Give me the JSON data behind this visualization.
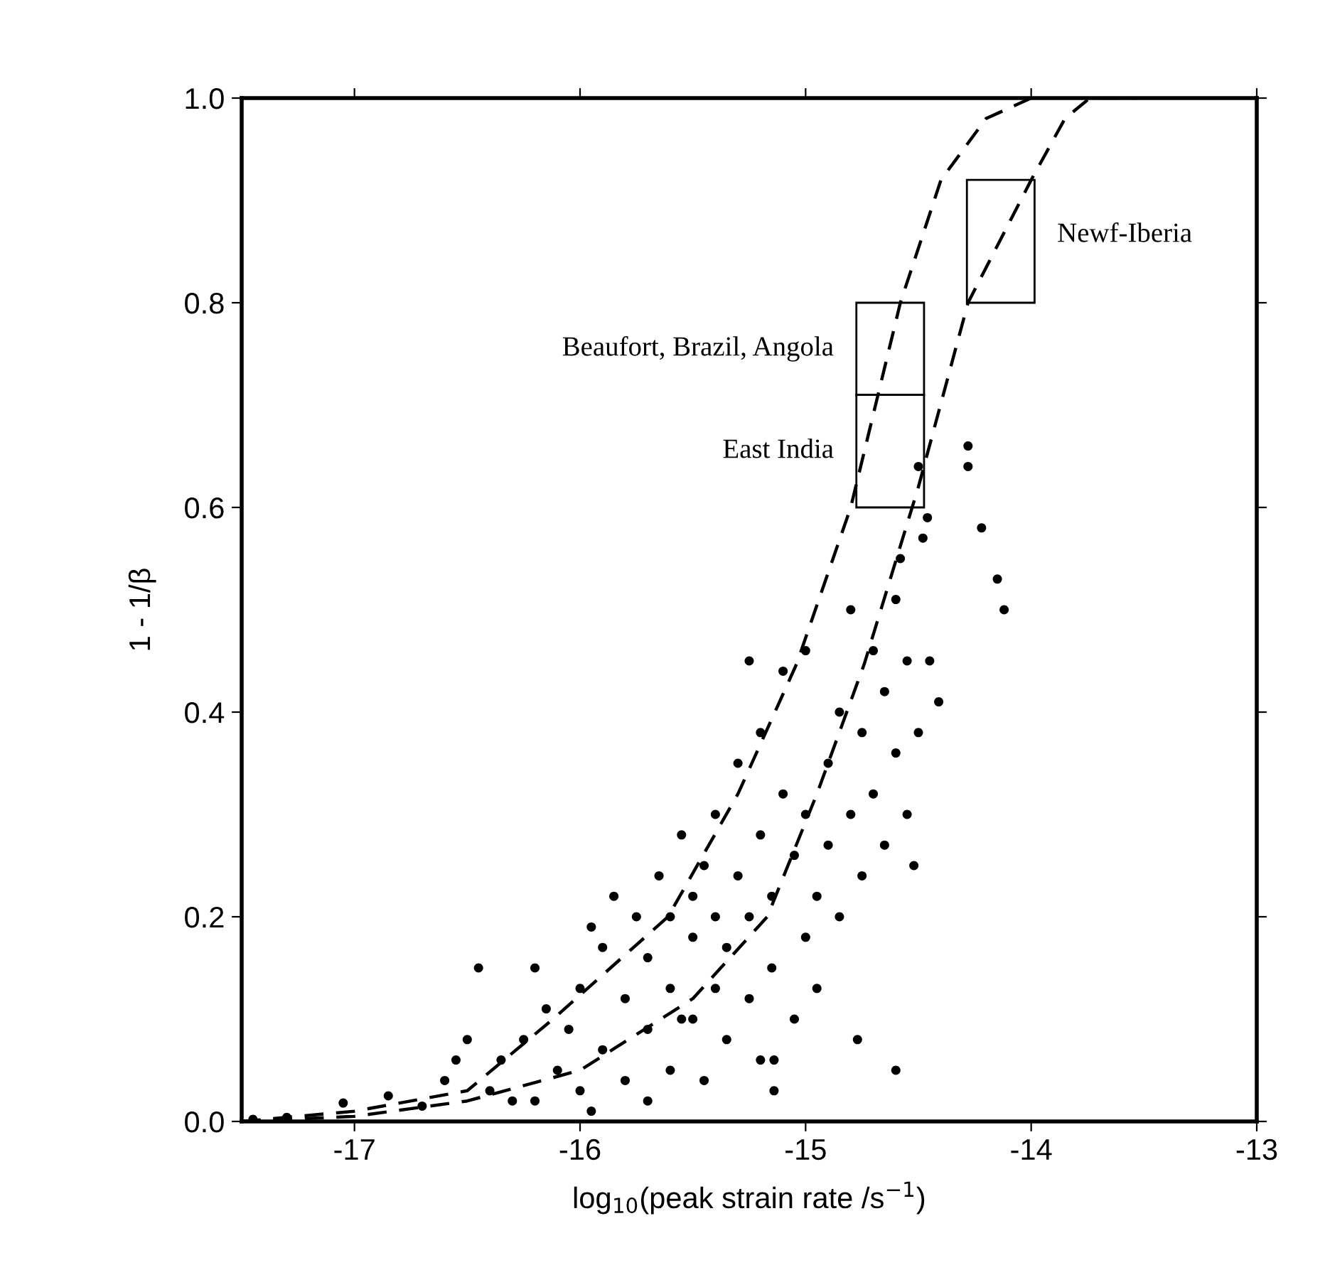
{
  "chart_data": {
    "type": "scatter",
    "xlabel": "log$_{10}$(peak strain rate /s$^{−1}$)",
    "ylabel": "1 - 1/β",
    "xlim": [
      -17.5,
      -13
    ],
    "ylim": [
      0,
      1
    ],
    "xticks": [
      -17,
      -16,
      -15,
      -14,
      -13
    ],
    "yticks": [
      {
        "value": 0,
        "label": "0.0"
      },
      0.2,
      0.4,
      0.6,
      0.8,
      {
        "value": 1,
        "label": "1.0"
      }
    ],
    "series": [
      {
        "color": "#000000",
        "marker": "circle",
        "x": [
          -17.45,
          -17.3,
          -17.05,
          -16.85,
          -16.7,
          -16.6,
          -16.55,
          -16.5,
          -16.45,
          -16.4,
          -16.35,
          -16.3,
          -16.25,
          -16.2,
          -16.2,
          -16.15,
          -16.1,
          -16.05,
          -16.0,
          -16.0,
          -15.95,
          -15.95,
          -15.9,
          -15.9,
          -15.85,
          -15.8,
          -15.8,
          -15.75,
          -15.7,
          -15.7,
          -15.7,
          -15.65,
          -15.6,
          -15.6,
          -15.6,
          -15.55,
          -15.55,
          -15.5,
          -15.5,
          -15.5,
          -15.45,
          -15.45,
          -15.4,
          -15.4,
          -15.4,
          -15.35,
          -15.35,
          -15.3,
          -15.3,
          -15.25,
          -15.25,
          -15.25,
          -15.2,
          -15.2,
          -15.2,
          -15.15,
          -15.15,
          -15.14,
          -15.14,
          -15.1,
          -15.1,
          -15.05,
          -15.05,
          -15.0,
          -15.0,
          -15.0,
          -14.95,
          -14.95,
          -14.9,
          -14.9,
          -14.85,
          -14.85,
          -14.8,
          -14.8,
          -14.77,
          -14.75,
          -14.75,
          -14.7,
          -14.7,
          -14.65,
          -14.65,
          -14.6,
          -14.6,
          -14.6,
          -14.58,
          -14.55,
          -14.55,
          -14.52,
          -14.5,
          -14.5,
          -14.48,
          -14.46,
          -14.45,
          -14.41,
          -14.28,
          -14.28,
          -14.22,
          -14.15,
          -14.12
        ],
        "values": [
          0.002,
          0.004,
          0.018,
          0.025,
          0.015,
          0.04,
          0.06,
          0.08,
          0.15,
          0.03,
          0.06,
          0.02,
          0.08,
          0.15,
          0.02,
          0.11,
          0.05,
          0.09,
          0.03,
          0.13,
          0.19,
          0.01,
          0.07,
          0.17,
          0.22,
          0.04,
          0.12,
          0.2,
          0.09,
          0.16,
          0.02,
          0.24,
          0.05,
          0.13,
          0.2,
          0.28,
          0.1,
          0.1,
          0.18,
          0.22,
          0.25,
          0.04,
          0.13,
          0.2,
          0.3,
          0.08,
          0.17,
          0.24,
          0.35,
          0.12,
          0.2,
          0.45,
          0.06,
          0.28,
          0.38,
          0.15,
          0.22,
          0.03,
          0.06,
          0.32,
          0.44,
          0.1,
          0.26,
          0.18,
          0.3,
          0.46,
          0.13,
          0.22,
          0.35,
          0.27,
          0.2,
          0.4,
          0.5,
          0.3,
          0.08,
          0.24,
          0.38,
          0.46,
          0.32,
          0.27,
          0.42,
          0.36,
          0.51,
          0.05,
          0.55,
          0.3,
          0.45,
          0.25,
          0.64,
          0.38,
          0.57,
          0.59,
          0.45,
          0.41,
          0.66,
          0.64,
          0.58,
          0.53,
          0.5
        ]
      },
      {
        "type": "line",
        "color": "#000000",
        "line_style": "dashed",
        "x": [
          -17.5,
          -17.0,
          -16.5,
          -16.12,
          -15.61,
          -15.3,
          -15.04,
          -14.8,
          -14.58,
          -14.4,
          -14.2,
          -14.0
        ],
        "values": [
          0,
          0.01,
          0.03,
          0.1,
          0.2,
          0.32,
          0.447,
          0.6,
          0.8,
          0.92,
          0.98,
          1.0
        ]
      },
      {
        "type": "line",
        "color": "#000000",
        "line_style": "dashed",
        "x": [
          -17.5,
          -17.0,
          -16.5,
          -16.0,
          -15.5,
          -15.17,
          -14.95,
          -14.74,
          -14.5,
          -14.28,
          -14.0,
          -13.85,
          -13.74,
          -13.53
        ],
        "values": [
          0,
          0.005,
          0.02,
          0.05,
          0.12,
          0.2,
          0.32,
          0.447,
          0.62,
          0.8,
          0.92,
          0.98,
          1.0,
          1.0
        ]
      },
      {
        "type": "bar",
        "color": "#000000",
        "x": [
          -14.625,
          -14.135
        ],
        "base": [
          0.71,
          0.8
        ],
        "values": [
          0.09,
          0.12
        ]
      },
      {
        "type": "bar",
        "color": "#000000",
        "x": [
          -14.625
        ],
        "base": [
          0.6
        ],
        "values": [
          0.11
        ]
      }
    ],
    "annotations": [
      "Beaufort, Brazil, Angola",
      "East India",
      "Newf-Iberia"
    ]
  }
}
